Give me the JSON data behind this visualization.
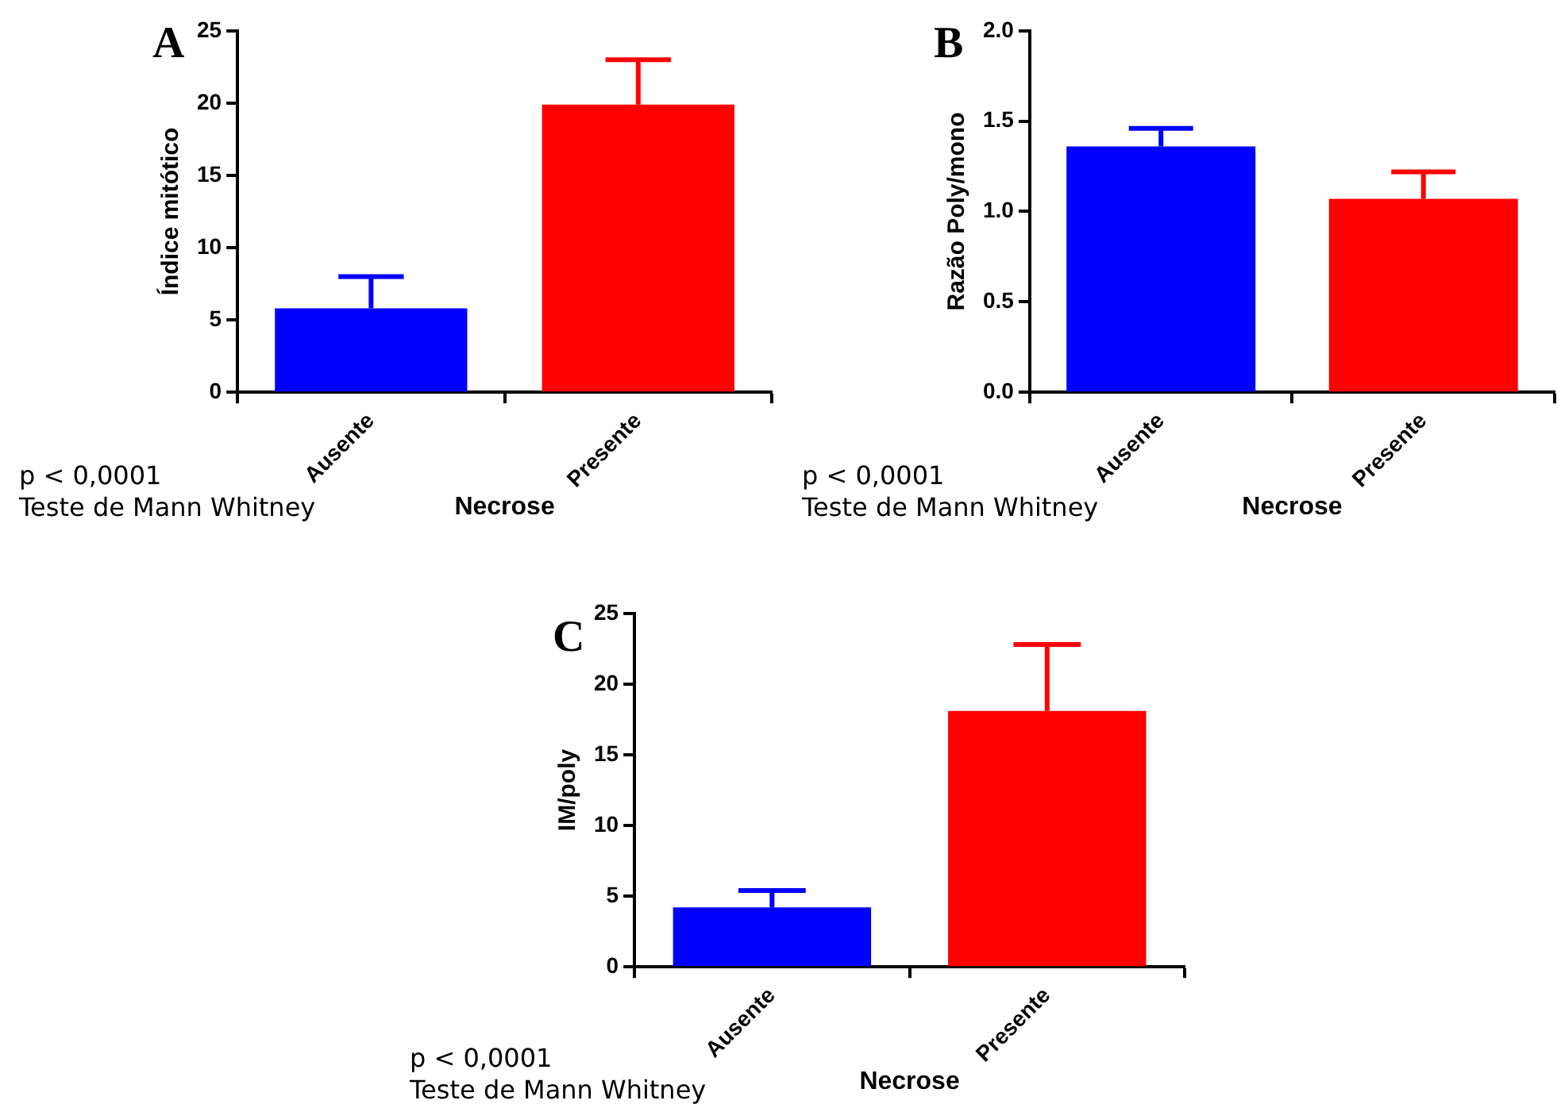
{
  "chart_data": [
    {
      "type": "bar",
      "title": "A",
      "categories": [
        "Ausente",
        "Presente"
      ],
      "values": [
        5.8,
        19.9
      ],
      "colors": [
        "#0000ff",
        "#ff0000"
      ],
      "errors": [
        [
          5.8,
          8
        ],
        [
          19.9,
          23
        ]
      ],
      "ylim": [
        0,
        25
      ],
      "yticks": [
        0,
        5,
        10,
        15,
        20,
        25
      ],
      "xlabel": "Necrose",
      "ylabel": "Índice mitótico",
      "annotations": [
        "p < 0,0001",
        "Teste de Mann Whitney"
      ],
      "grid": false,
      "legend": false
    },
    {
      "type": "bar",
      "title": "B",
      "categories": [
        "Ausente",
        "Presente"
      ],
      "values": [
        1.36,
        1.07
      ],
      "colors": [
        "#0000ff",
        "#ff0000"
      ],
      "errors": [
        [
          1.36,
          1.46
        ],
        [
          1.07,
          1.22
        ]
      ],
      "ylim": [
        0,
        2
      ],
      "yticks": [
        {
          "value": 0,
          "label": "0.0"
        },
        {
          "value": 0.5,
          "label": "0.5"
        },
        {
          "value": 1,
          "label": "1.0"
        },
        {
          "value": 1.5,
          "label": "1.5"
        },
        {
          "value": 2,
          "label": "2.0"
        }
      ],
      "xlabel": "Necrose",
      "ylabel": "Razão Poly/mono",
      "annotations": [
        "p < 0,0001",
        "Teste de Mann Whitney"
      ],
      "grid": false,
      "legend": false
    },
    {
      "type": "bar",
      "title": "C",
      "categories": [
        "Ausente",
        "Presente"
      ],
      "values": [
        4.2,
        18.1
      ],
      "colors": [
        "#0000ff",
        "#ff0000"
      ],
      "errors": [
        [
          4.2,
          5.4
        ],
        [
          18.1,
          22.8
        ]
      ],
      "ylim": [
        0,
        25
      ],
      "yticks": [
        0,
        5,
        10,
        15,
        20,
        25
      ],
      "xlabel": "Necrose",
      "ylabel": "IM/poly",
      "annotations": [
        "p < 0,0001",
        "Teste de Mann Whitney"
      ],
      "grid": false,
      "legend": false
    }
  ]
}
